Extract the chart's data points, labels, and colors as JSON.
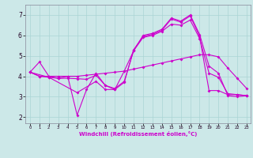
{
  "xlabel": "Windchill (Refroidissement éolien,°C)",
  "ylabel": "",
  "background_color": "#cce8e8",
  "grid_color": "#aad4d4",
  "line_color": "#cc00cc",
  "xlim": [
    -0.5,
    23.4
  ],
  "ylim": [
    1.7,
    7.5
  ],
  "xticks": [
    0,
    1,
    2,
    3,
    4,
    5,
    6,
    7,
    8,
    9,
    10,
    11,
    12,
    13,
    14,
    15,
    16,
    17,
    18,
    19,
    20,
    21,
    22,
    23
  ],
  "yticks": [
    2,
    3,
    4,
    5,
    6,
    7
  ],
  "line1_x": [
    0,
    1,
    2,
    3,
    4,
    5,
    6,
    7,
    8,
    9,
    10,
    11,
    12,
    13,
    14,
    15,
    16,
    17,
    18,
    19,
    20,
    21,
    22,
    23
  ],
  "line1_y": [
    4.2,
    4.7,
    4.0,
    3.9,
    4.0,
    2.1,
    3.35,
    4.15,
    3.55,
    3.4,
    3.75,
    5.25,
    6.0,
    6.1,
    6.3,
    6.85,
    6.7,
    7.0,
    6.05,
    4.5,
    4.15,
    3.05,
    3.0,
    3.05
  ],
  "line2_x": [
    0,
    1,
    2,
    3,
    4,
    5,
    6,
    7,
    8,
    9,
    10,
    11,
    12,
    13,
    14,
    15,
    16,
    17,
    18,
    19,
    20,
    21,
    22,
    23
  ],
  "line2_y": [
    4.2,
    4.0,
    4.0,
    4.0,
    4.0,
    4.0,
    4.05,
    4.1,
    4.15,
    4.2,
    4.25,
    4.35,
    4.45,
    4.55,
    4.65,
    4.75,
    4.85,
    4.95,
    5.05,
    5.05,
    4.95,
    4.4,
    3.9,
    3.4
  ],
  "line3_x": [
    0,
    2,
    5,
    7,
    8,
    9,
    10,
    11,
    12,
    13,
    14,
    15,
    16,
    17,
    18,
    19,
    20,
    21,
    22,
    23
  ],
  "line3_y": [
    4.2,
    3.95,
    3.2,
    3.75,
    3.35,
    3.35,
    3.7,
    5.3,
    5.95,
    6.05,
    6.25,
    6.8,
    6.65,
    6.95,
    5.95,
    3.3,
    3.3,
    3.1,
    3.1,
    3.05
  ],
  "line4_x": [
    0,
    1,
    2,
    3,
    4,
    5,
    6,
    7,
    8,
    9,
    10,
    11,
    12,
    13,
    14,
    15,
    16,
    17,
    18,
    19,
    20,
    21,
    22,
    23
  ],
  "line4_y": [
    4.2,
    4.0,
    3.95,
    3.9,
    3.9,
    3.88,
    3.85,
    4.05,
    3.55,
    3.35,
    4.25,
    5.25,
    5.9,
    6.0,
    6.2,
    6.55,
    6.5,
    6.75,
    5.85,
    4.15,
    3.95,
    3.15,
    3.1,
    3.05
  ],
  "figsize": [
    3.2,
    2.0
  ],
  "dpi": 100
}
